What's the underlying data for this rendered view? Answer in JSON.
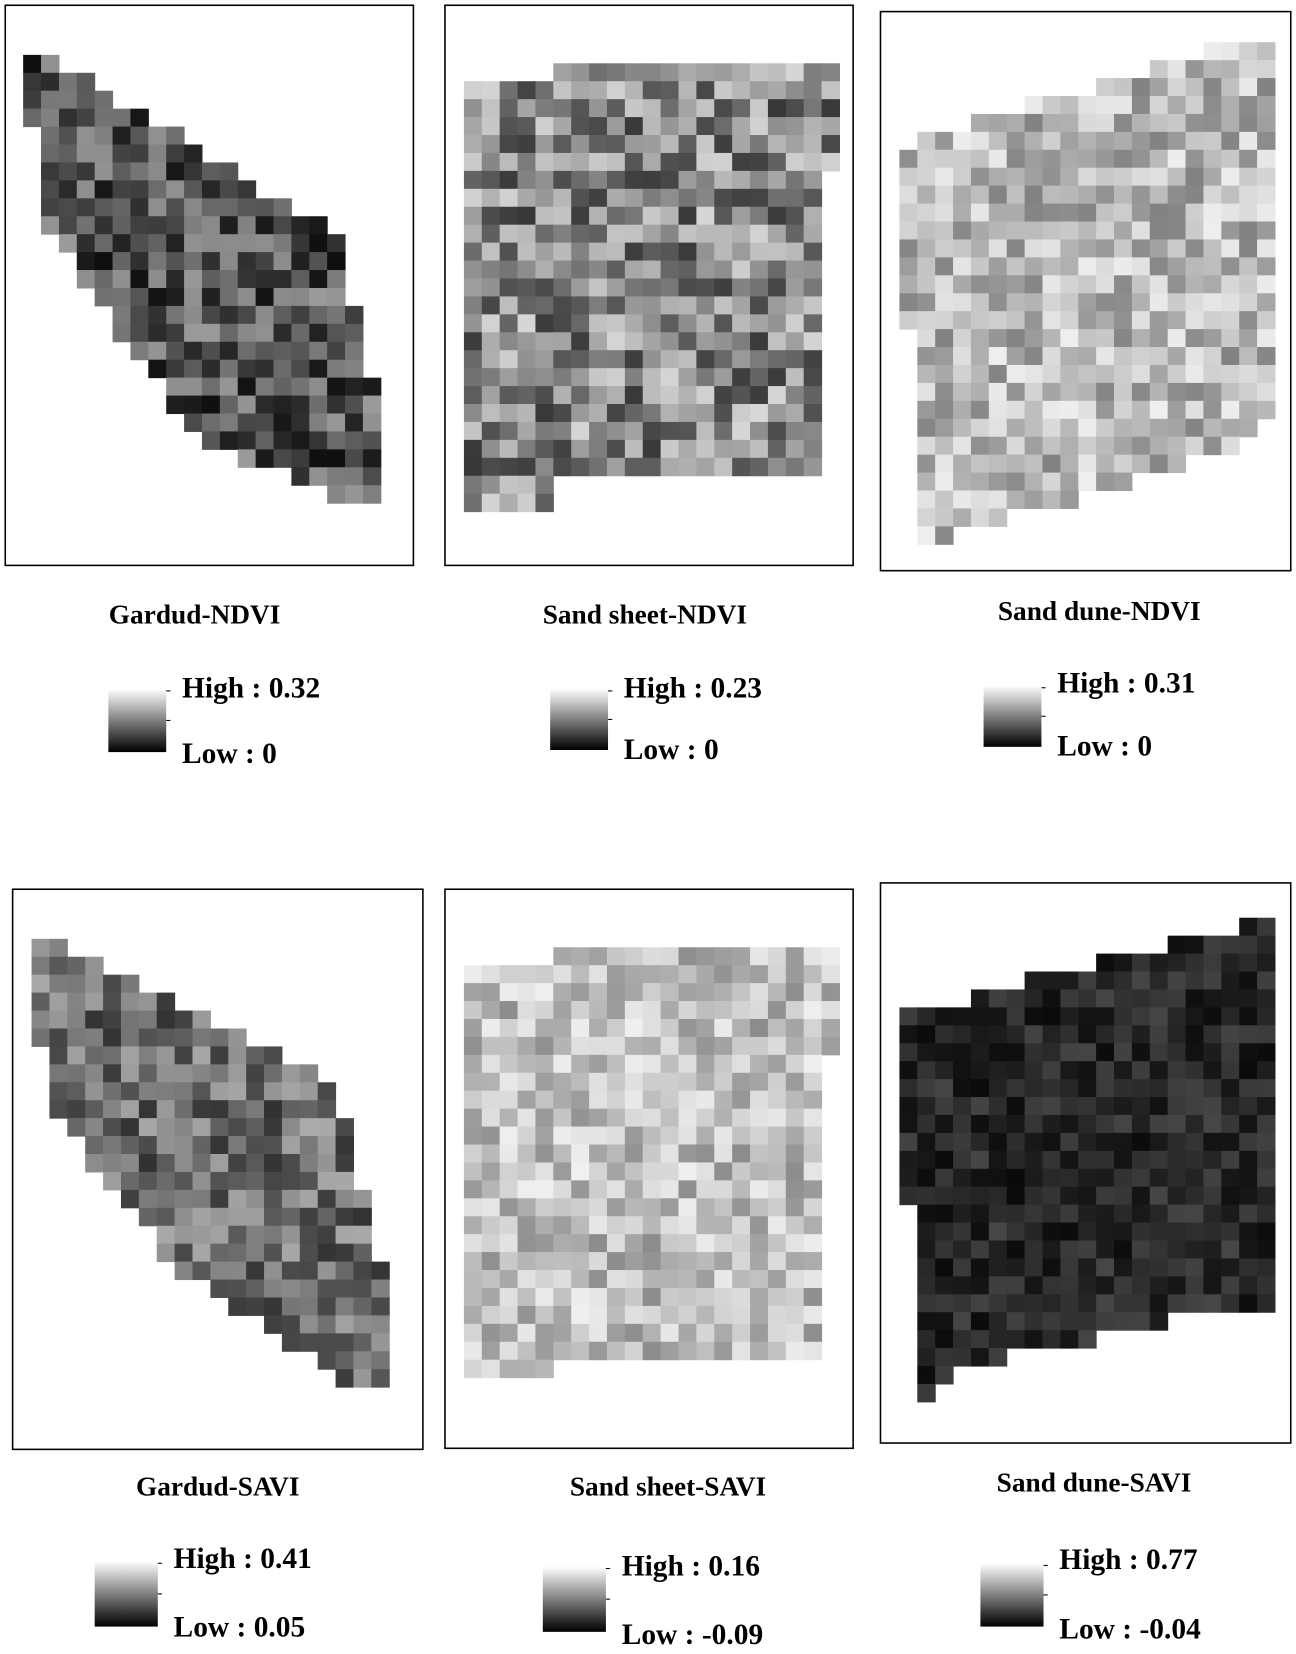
{
  "panels": [
    {
      "title": "Gardud-NDVI",
      "legend": {
        "high": "High : 0.32",
        "low": "Low : 0"
      }
    },
    {
      "title": "Sand sheet-NDVI",
      "legend": {
        "high": "High : 0.23",
        "low": "Low : 0"
      }
    },
    {
      "title": "Sand dune-NDVI",
      "legend": {
        "high": "High : 0.31",
        "low": "Low : 0"
      }
    },
    {
      "title": "Gardud-SAVI",
      "legend": {
        "high": "High : 0.41",
        "low": "Low : 0.05"
      }
    },
    {
      "title": "Sand sheet-SAVI",
      "legend": {
        "high": "High : 0.16",
        "low": "Low : -0.09"
      }
    },
    {
      "title": "Sand dune-SAVI",
      "legend": {
        "high": "High : 0.77",
        "low": "Low : -0.04"
      }
    }
  ]
}
